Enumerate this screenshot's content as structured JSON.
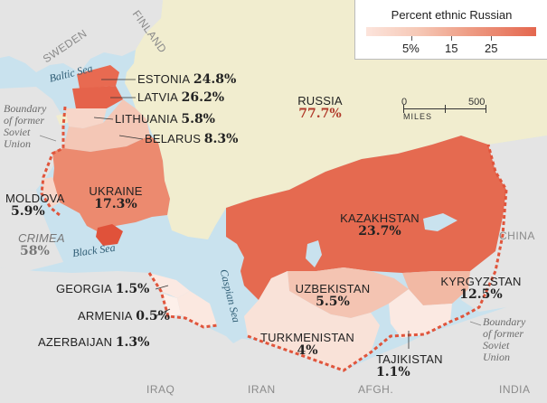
{
  "legend": {
    "title": "Percent ethnic Russian",
    "ticks": [
      "5%",
      "15",
      "25"
    ],
    "color_low": "#fce4dc",
    "color_high": "#e4674f"
  },
  "scale_bar": {
    "start": "0",
    "end": "500",
    "unit": "MILES"
  },
  "regions": {
    "russia": {
      "name": "RUSSIA",
      "percent": "77.7%",
      "value": 77.7,
      "fill": "#f1edcf",
      "label_color": "#b13a2a"
    },
    "estonia": {
      "name": "ESTONIA",
      "percent": "24.8%",
      "value": 24.8,
      "fill": "#e86a51"
    },
    "latvia": {
      "name": "LATVIA",
      "percent": "26.2%",
      "value": 26.2,
      "fill": "#e5634b"
    },
    "lithuania": {
      "name": "LITHUANIA",
      "percent": "5.8%",
      "value": 5.8,
      "fill": "#f7d6c9"
    },
    "belarus": {
      "name": "BELARUS",
      "percent": "8.3%",
      "value": 8.3,
      "fill": "#f4c7b6"
    },
    "ukraine": {
      "name": "UKRAINE",
      "percent": "17.3%",
      "value": 17.3,
      "fill": "#ec8a6f"
    },
    "moldova": {
      "name": "MOLDOVA",
      "percent": "5.9%",
      "value": 5.9,
      "fill": "#f7d6c9"
    },
    "crimea": {
      "name": "CRIMEA",
      "percent": "58%",
      "value": 58,
      "fill": "#e0523a"
    },
    "georgia": {
      "name": "GEORGIA",
      "percent": "1.5%",
      "value": 1.5,
      "fill": "#fbe9e2"
    },
    "armenia": {
      "name": "ARMENIA",
      "percent": "0.5%",
      "value": 0.5,
      "fill": "#fdf0ea"
    },
    "azerbaijan": {
      "name": "AZERBAIJAN",
      "percent": "1.3%",
      "value": 1.3,
      "fill": "#fbe8e0"
    },
    "kazakhstan": {
      "name": "KAZAKHSTAN",
      "percent": "23.7%",
      "value": 23.7,
      "fill": "#e56a50"
    },
    "uzbekistan": {
      "name": "UZBEKISTAN",
      "percent": "5.5%",
      "value": 5.5,
      "fill": "#f4c4b2"
    },
    "kyrgyzstan": {
      "name": "KYRGYZSTAN",
      "percent": "12.5%",
      "value": 12.5,
      "fill": "#f2b9a4"
    },
    "turkmenistan": {
      "name": "TURKMENISTAN",
      "percent": "4%",
      "value": 4,
      "fill": "#f9e2d8"
    },
    "tajikistan": {
      "name": "TAJIKISTAN",
      "percent": "1.1%",
      "value": 1.1,
      "fill": "#fbe9e2"
    }
  },
  "seas": {
    "baltic": "Baltic Sea",
    "black": "Black Sea",
    "caspian": "Caspian Sea"
  },
  "neighbors": {
    "sweden": "SWEDEN",
    "finland": "FINLAND",
    "china": "CHINA",
    "iraq": "IRAQ",
    "iran": "IRAN",
    "afgh": "AFGH.",
    "india": "INDIA"
  },
  "boundary_note": {
    "west": [
      "Boundary",
      "of former",
      "Soviet",
      "Union"
    ],
    "east": [
      "Boundary",
      "of former",
      "Soviet",
      "Union"
    ]
  },
  "colors": {
    "water": "#c9e2ee",
    "outside_land": "#e4e4e4",
    "soviet_border": "#e0553c"
  }
}
